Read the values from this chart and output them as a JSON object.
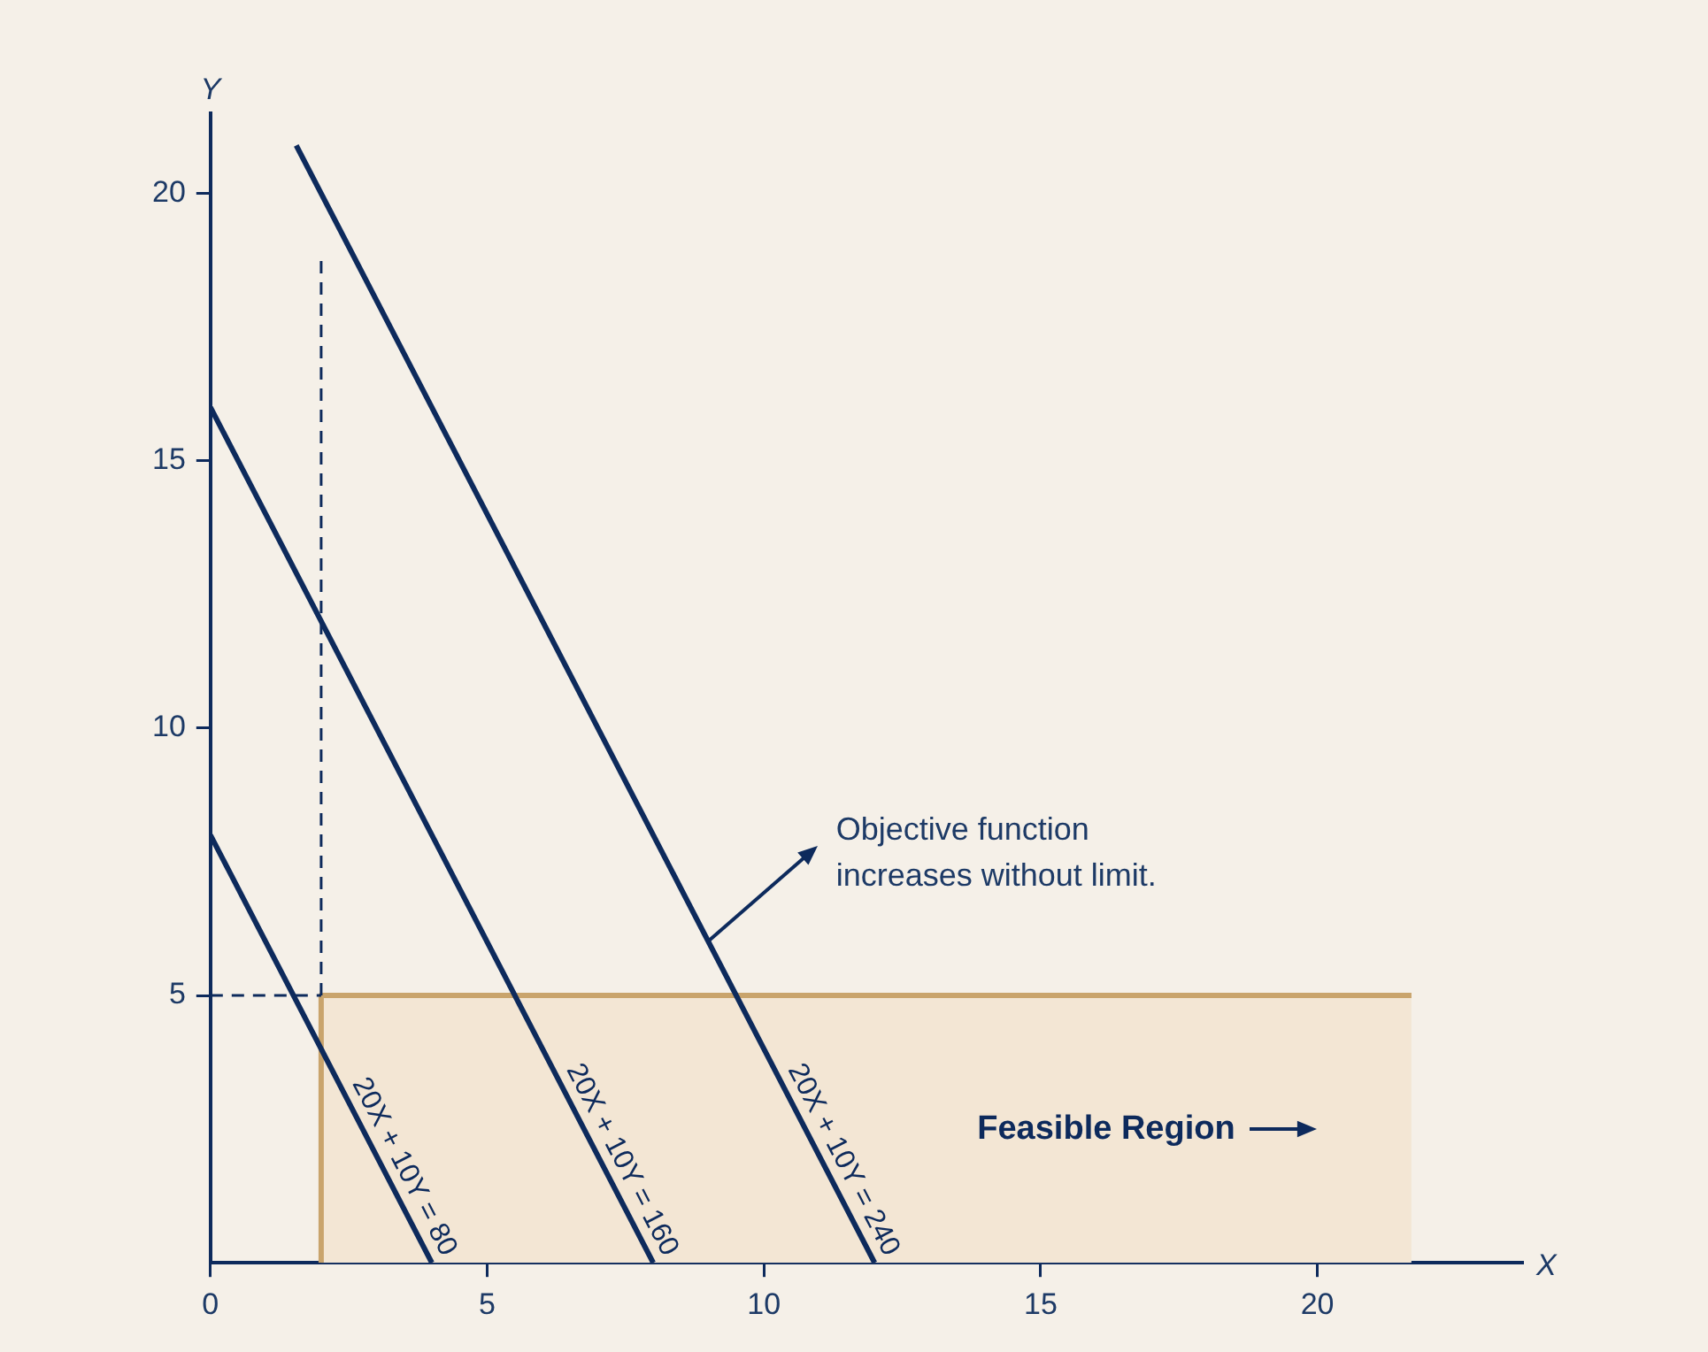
{
  "chart_data": {
    "type": "line",
    "xlabel": "X",
    "ylabel": "Y",
    "xlim": [
      0,
      23.7
    ],
    "ylim": [
      0,
      21.5
    ],
    "xticks": [
      0,
      5,
      10,
      15,
      20
    ],
    "yticks": [
      5,
      10,
      15,
      20
    ],
    "grid": false,
    "marker": "none",
    "legend": false,
    "series": [
      {
        "type": "area",
        "color": "#c9a46c",
        "x": [
          2,
          2,
          21.7
        ],
        "values": [
          0,
          5,
          5
        ]
      },
      {
        "color": "#0d2a5c",
        "line_style": "dashed",
        "x": [
          2,
          2
        ],
        "values": [
          5,
          18.8
        ]
      },
      {
        "color": "#0d2a5c",
        "line_style": "dashed",
        "x": [
          0,
          2
        ],
        "values": [
          5,
          5
        ]
      },
      {
        "name": "20X + 10Y = 80",
        "color": "#0d2a5c",
        "x": [
          0,
          4
        ],
        "values": [
          8,
          0
        ]
      },
      {
        "name": "20X + 10Y = 160",
        "color": "#0d2a5c",
        "x": [
          0,
          8
        ],
        "values": [
          16,
          0
        ]
      },
      {
        "name": "20X + 10Y = 240",
        "color": "#0d2a5c",
        "x": [
          1.55,
          12
        ],
        "values": [
          20.9,
          0
        ]
      }
    ],
    "annotations": [
      {
        "text": "Objective function\nincreases without limit.",
        "x": 9,
        "y": 6
      },
      "Feasible Region"
    ]
  }
}
